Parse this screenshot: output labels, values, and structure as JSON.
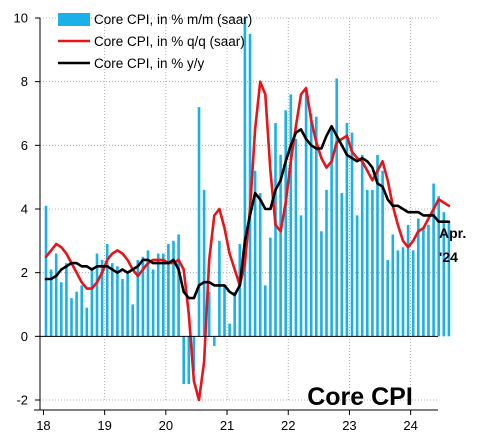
{
  "chart_data": {
    "type": "bar+line",
    "title": "Core CPI",
    "annotation": [
      "Apr.",
      "'24"
    ],
    "ylim": [
      -2,
      10
    ],
    "y_ticks": [
      -2,
      0,
      2,
      4,
      6,
      8,
      10
    ],
    "x_ticks": [
      "18",
      "19",
      "20",
      "21",
      "22",
      "23",
      "24"
    ],
    "x_start": "2018-01",
    "legend_position": "top-left",
    "series": [
      {
        "name": "Core CPI, in % m/m (saar)",
        "kind": "bar",
        "color": "#1ab0e8",
        "values": [
          4.1,
          2.1,
          2.6,
          1.7,
          2.3,
          1.2,
          1.4,
          1.6,
          0.9,
          2.1,
          2.6,
          2.4,
          2.9,
          2.3,
          2.2,
          1.8,
          2.0,
          1.0,
          2.4,
          2.5,
          2.7,
          2.1,
          2.6,
          2.6,
          2.9,
          3.0,
          3.2,
          -1.5,
          -1.5,
          -1.1,
          7.2,
          4.6,
          1.4,
          -0.3,
          3.0,
          1.6,
          0.4,
          1.4,
          2.9,
          10.0,
          9.5,
          5.2,
          4.5,
          1.6,
          3.1,
          6.7,
          5.7,
          7.1,
          7.6,
          6.2,
          3.8,
          7.8,
          7.0,
          6.9,
          3.3,
          4.6,
          6.6,
          8.1,
          4.5,
          6.7,
          6.4,
          3.8,
          5.7,
          4.6,
          4.6,
          5.7,
          5.2,
          2.4,
          3.2,
          2.7,
          2.8,
          3.5,
          2.7,
          3.7,
          3.4,
          3.5,
          4.8,
          4.4,
          3.9,
          3.6
        ]
      },
      {
        "name": "Core CPI, in % q/q (saar)",
        "kind": "line",
        "color": "#e8141a",
        "values": [
          2.5,
          2.7,
          2.9,
          2.8,
          2.6,
          2.3,
          2.0,
          1.7,
          1.5,
          1.5,
          1.7,
          2.0,
          2.4,
          2.6,
          2.7,
          2.6,
          2.4,
          2.1,
          1.9,
          2.1,
          2.3,
          2.4,
          2.4,
          2.4,
          2.3,
          2.3,
          2.4,
          2.1,
          0.7,
          -1.4,
          -2.0,
          -0.8,
          2.4,
          3.8,
          4.0,
          3.4,
          2.6,
          2.1,
          1.6,
          2.3,
          4.0,
          6.5,
          8.0,
          7.6,
          5.2,
          3.5,
          3.3,
          4.2,
          5.5,
          6.6,
          7.6,
          7.8,
          6.8,
          6.1,
          5.6,
          5.3,
          5.5,
          6.1,
          6.2,
          6.3,
          5.8,
          5.6,
          5.5,
          5.2,
          4.9,
          5.2,
          5.5,
          4.9,
          4.1,
          3.5,
          3.0,
          2.8,
          3.0,
          3.3,
          3.4,
          3.7,
          4.0,
          4.3,
          4.2,
          4.1
        ]
      },
      {
        "name": "Core CPI, in % y/y",
        "kind": "line",
        "color": "#000000",
        "values": [
          1.8,
          1.8,
          1.9,
          2.1,
          2.2,
          2.3,
          2.3,
          2.2,
          2.2,
          2.1,
          2.2,
          2.2,
          2.2,
          2.1,
          2.0,
          2.1,
          2.0,
          2.1,
          2.2,
          2.4,
          2.4,
          2.3,
          2.3,
          2.3,
          2.3,
          2.4,
          2.1,
          1.4,
          1.2,
          1.2,
          1.6,
          1.7,
          1.7,
          1.6,
          1.6,
          1.6,
          1.4,
          1.3,
          1.6,
          3.0,
          3.8,
          4.5,
          4.3,
          4.0,
          4.0,
          4.6,
          4.9,
          5.5,
          6.0,
          6.4,
          6.5,
          6.2,
          6.0,
          5.9,
          5.9,
          6.3,
          6.6,
          6.3,
          6.0,
          5.7,
          5.6,
          5.5,
          5.6,
          5.5,
          5.3,
          4.8,
          4.7,
          4.3,
          4.1,
          4.1,
          4.0,
          3.9,
          3.9,
          3.9,
          3.8,
          3.8,
          3.8,
          3.6,
          3.6,
          3.6
        ]
      }
    ]
  }
}
